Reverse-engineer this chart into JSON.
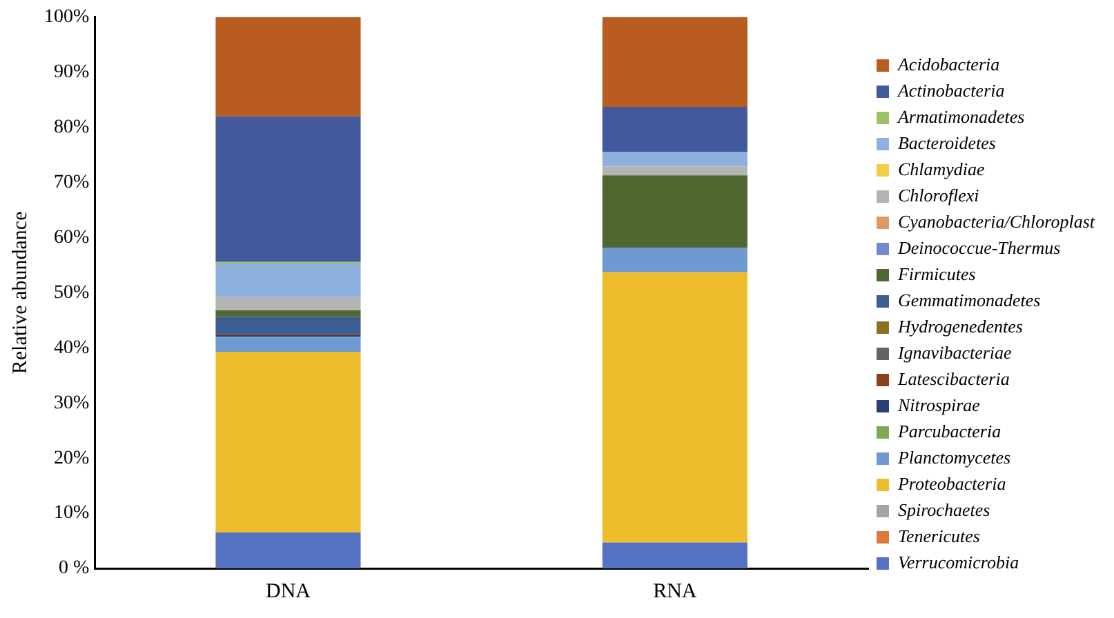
{
  "chart_data": {
    "type": "bar",
    "stacked": true,
    "ylabel": "Relative abundance",
    "categories": [
      "DNA",
      "RNA"
    ],
    "ylim": [
      0,
      100
    ],
    "yticks": [
      {
        "value": 0,
        "label": "0 %"
      },
      {
        "value": 10,
        "label": "10%"
      },
      {
        "value": 20,
        "label": "20%"
      },
      {
        "value": 30,
        "label": "30%"
      },
      {
        "value": 40,
        "label": "40%"
      },
      {
        "value": 50,
        "label": "50%"
      },
      {
        "value": 60,
        "label": "60%"
      },
      {
        "value": 70,
        "label": "70%"
      },
      {
        "value": 80,
        "label": "80%"
      },
      {
        "value": 90,
        "label": "90%"
      },
      {
        "value": 100,
        "label": "100%"
      }
    ],
    "grid": false,
    "legend": "right",
    "series": [
      {
        "name": "Verrucomicrobia",
        "color": "#5571c1",
        "values": [
          6.5,
          4.7
        ]
      },
      {
        "name": "Tenericutes",
        "color": "#d97a38",
        "values": [
          0,
          0
        ]
      },
      {
        "name": "Spirochaetes",
        "color": "#a5a5a5",
        "values": [
          0,
          0
        ]
      },
      {
        "name": "Proteobacteria",
        "color": "#edbd2c",
        "values": [
          32.8,
          49.0
        ]
      },
      {
        "name": "Planctomycetes",
        "color": "#6f9ad1",
        "values": [
          2.7,
          4.3
        ]
      },
      {
        "name": "Parcubacteria",
        "color": "#7eaa52",
        "values": [
          0,
          0
        ]
      },
      {
        "name": "Nitrospirae",
        "color": "#2a3f74",
        "values": [
          0.3,
          0
        ]
      },
      {
        "name": "Latescibacteria",
        "color": "#8a4119",
        "values": [
          0.2,
          0
        ]
      },
      {
        "name": "Ignavibacteriae",
        "color": "#636363",
        "values": [
          0,
          0
        ]
      },
      {
        "name": "Hydrogenedentes",
        "color": "#8b7020",
        "values": [
          0,
          0
        ]
      },
      {
        "name": "Gemmatimonadetes",
        "color": "#3a5e91",
        "values": [
          3.1,
          0.2
        ]
      },
      {
        "name": "Firmicutes",
        "color": "#4f6731",
        "values": [
          1.2,
          13.1
        ]
      },
      {
        "name": "Deinococcue-Thermus",
        "color": "#7189cf",
        "values": [
          0,
          0
        ]
      },
      {
        "name": "Cyanobacteria/Chloroplast",
        "color": "#e0995e",
        "values": [
          0,
          0
        ]
      },
      {
        "name": "Chloroflexi",
        "color": "#b4b4b4",
        "values": [
          2.4,
          1.6
        ]
      },
      {
        "name": "Chlamydiae",
        "color": "#f5cd44",
        "values": [
          0,
          0
        ]
      },
      {
        "name": "Bacteroidetes",
        "color": "#8eb0dc",
        "values": [
          6.1,
          2.6
        ]
      },
      {
        "name": "Armatimonadetes",
        "color": "#9bc266",
        "values": [
          0.3,
          0
        ]
      },
      {
        "name": "Actinobacteria",
        "color": "#42599e",
        "values": [
          26.4,
          8.2
        ]
      },
      {
        "name": "Acidobacteria",
        "color": "#b85c1f",
        "values": [
          18.0,
          16.3
        ]
      }
    ]
  }
}
